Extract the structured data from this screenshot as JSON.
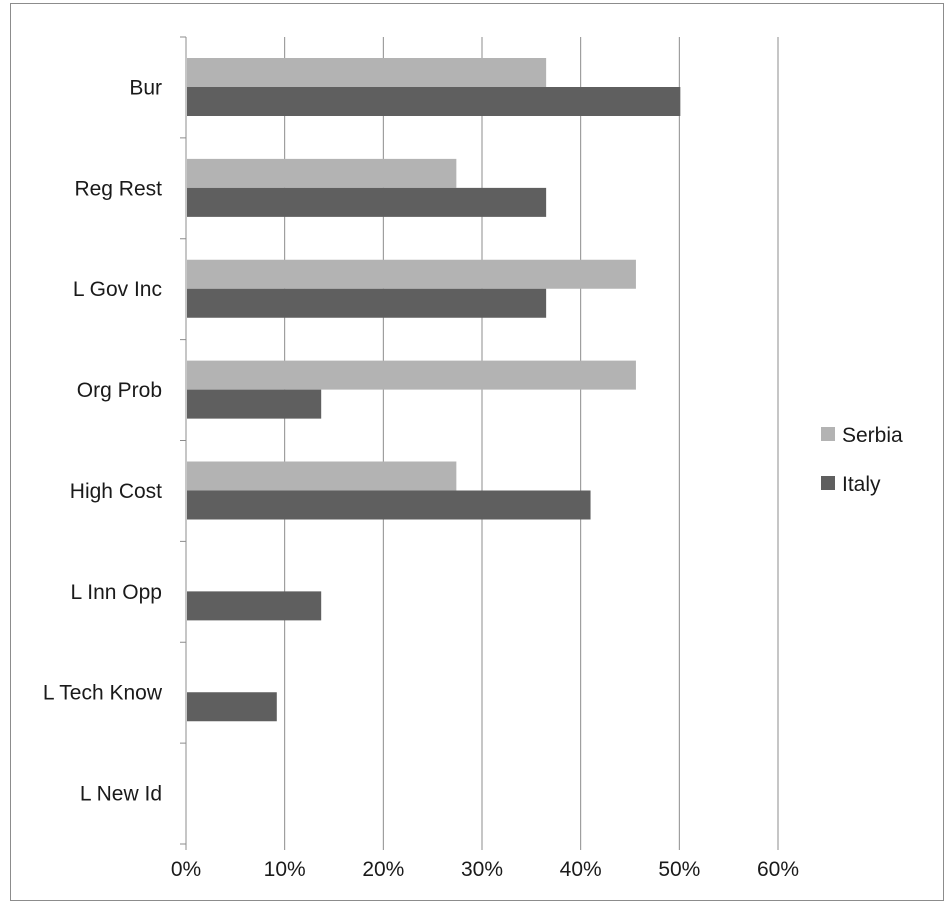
{
  "chart_data": {
    "type": "bar",
    "orientation": "horizontal",
    "categories": [
      "Bur",
      "Reg Rest",
      "L Gov Inc",
      "Org Prob",
      "High Cost",
      "L Inn Opp",
      "L Tech Know",
      "L New Id"
    ],
    "series": [
      {
        "name": "Serbia",
        "color": "#b3b3b3",
        "values": [
          36.4,
          27.3,
          45.5,
          45.5,
          27.3,
          0,
          0,
          0
        ]
      },
      {
        "name": "Italy",
        "color": "#5f5f5f",
        "values": [
          50.0,
          36.4,
          36.4,
          13.6,
          40.9,
          13.6,
          9.1,
          0
        ]
      }
    ],
    "xlim": [
      0,
      60
    ],
    "xticks": [
      "0%",
      "10%",
      "20%",
      "30%",
      "40%",
      "50%",
      "60%"
    ],
    "title": "",
    "xlabel": "",
    "ylabel": "",
    "grid": "vertical",
    "legend_position": "right"
  }
}
